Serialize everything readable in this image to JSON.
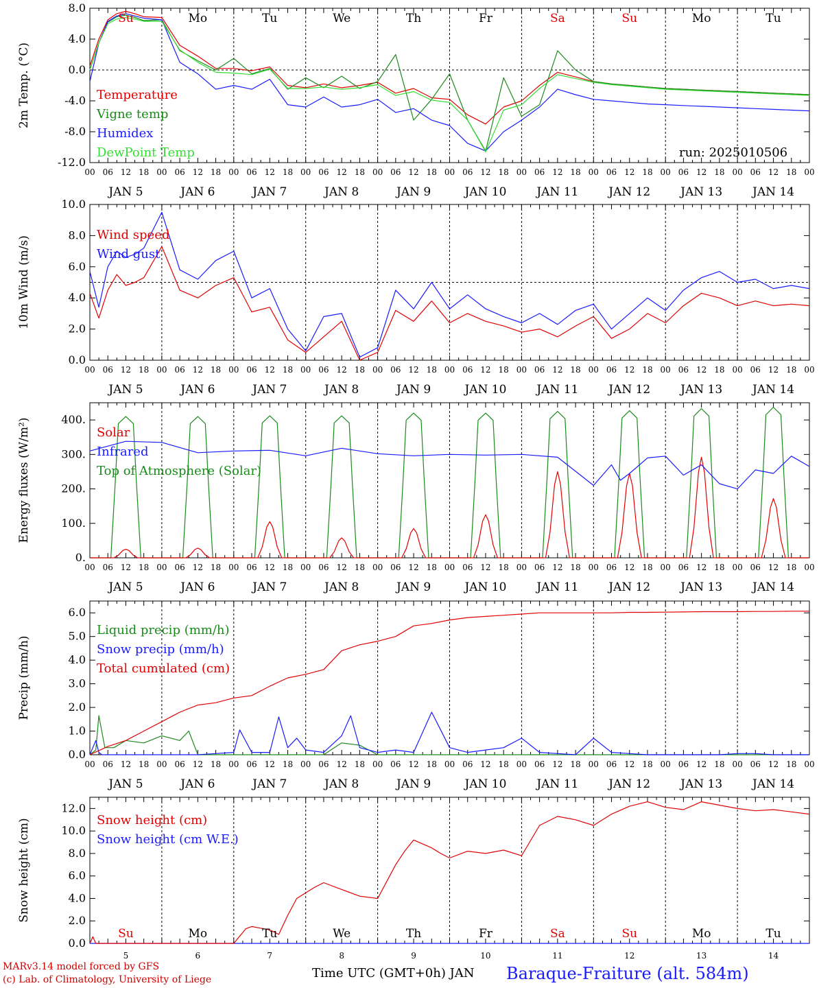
{
  "x_axis": {
    "hour_ticks": [
      "00",
      "06",
      "12",
      "18"
    ],
    "date_labels": [
      "JAN  5",
      "JAN  6",
      "JAN  7",
      "JAN  8",
      "JAN  9",
      "JAN 10",
      "JAN 11",
      "JAN 12",
      "JAN 13",
      "JAN 14"
    ],
    "weekdays": [
      "Su",
      "Mo",
      "Tu",
      "We",
      "Th",
      "Fr",
      "Sa",
      "Su",
      "Mo",
      "Tu"
    ],
    "weekday_colors": [
      "#e00000",
      "#000000",
      "#000000",
      "#000000",
      "#000000",
      "#000000",
      "#e00000",
      "#e00000",
      "#000000",
      "#000000"
    ],
    "day_numbers": [
      "5",
      "6",
      "7",
      "8",
      "9",
      "10",
      "11",
      "12",
      "13",
      "14"
    ]
  },
  "footer": {
    "model_line": "MARv3.14 model forced by GFS",
    "lab_line": "(c) Lab. of Climatology, University of Liege",
    "time_label": "Time UTC (GMT+0h) JAN",
    "station": "Baraque-Fraiture (alt. 584m)"
  },
  "colors": {
    "red": "#e00000",
    "green": "#1a8a1a",
    "blue": "#1a1aff",
    "light_green": "#33dd33"
  },
  "chart_data": [
    {
      "id": "temperature",
      "type": "line",
      "ylabel": "2m Temp. (°C)",
      "ylim": [
        -12,
        8
      ],
      "yticks": [
        "8.0",
        "4.0",
        "0.0",
        "-4.0",
        "-8.0",
        "-12.0"
      ],
      "ytick_values": [
        8,
        4,
        0,
        -4,
        -8,
        -12
      ],
      "reference_line": 0,
      "run_label": "run: 2025010506",
      "legend": [
        "Temperature",
        "Vigne temp",
        "Humidex",
        "DewPoint Temp"
      ],
      "x_hours": [
        0,
        3,
        6,
        9,
        12,
        15,
        18,
        24,
        30,
        36,
        42,
        48,
        54,
        60,
        66,
        72,
        78,
        84,
        90,
        96,
        102,
        108,
        114,
        120,
        126,
        132,
        138,
        144,
        150,
        156,
        162,
        168,
        174,
        180,
        186,
        192,
        198,
        204,
        210,
        216,
        222,
        228,
        234,
        240
      ],
      "series": [
        {
          "name": "Temperature",
          "color": "red",
          "values": [
            0.5,
            4,
            6.5,
            7.3,
            7.6,
            7.3,
            6.9,
            6.8,
            3.2,
            1.8,
            0.2,
            0.2,
            -0.1,
            0.4,
            -2.0,
            -2.3,
            -1.8,
            -2.3,
            -2.0,
            -1.6,
            -3.0,
            -2.4,
            -3.6,
            -3.8,
            -5.8,
            -7.0,
            -4.8,
            -4.0,
            -2.0,
            -0.3,
            -0.9,
            -1.5,
            -1.8,
            -2.0,
            -2.2,
            -2.4,
            -2.5,
            -2.6,
            -2.7,
            -2.8,
            -2.9,
            -3.0,
            -3.1,
            -3.2
          ]
        },
        {
          "name": "Vigne temp",
          "color": "green",
          "values": [
            0,
            3.5,
            6.2,
            6.9,
            7.1,
            6.8,
            6.4,
            6.5,
            2.5,
            1.2,
            0.0,
            1.5,
            -0.5,
            0.2,
            -2.5,
            -1.0,
            -2.3,
            -0.8,
            -2.4,
            -1.5,
            2.0,
            -6.5,
            -3.8,
            -0.5,
            -6.5,
            -10.5,
            -1.0,
            -6.0,
            -4.5,
            2.5,
            0.0,
            -1.5,
            -1.8,
            -2.0,
            -2.2,
            -2.4,
            -2.5,
            -2.6,
            -2.7,
            -2.8,
            -2.9,
            -3.0,
            -3.1,
            -3.2
          ]
        },
        {
          "name": "Humidex",
          "color": "blue",
          "values": [
            -1.5,
            3.5,
            6.3,
            7.0,
            7.3,
            7.0,
            6.7,
            6.5,
            1.0,
            -0.5,
            -2.5,
            -2.0,
            -2.5,
            -1.2,
            -4.5,
            -4.8,
            -3.5,
            -4.8,
            -4.5,
            -3.8,
            -5.5,
            -5.0,
            -6.5,
            -7.2,
            -9.5,
            -10.5,
            -8.0,
            -6.5,
            -4.8,
            -2.5,
            -3.2,
            -3.8,
            -4.0,
            -4.2,
            -4.4,
            -4.5,
            -4.6,
            -4.7,
            -4.8,
            -4.9,
            -5.0,
            -5.1,
            -5.2,
            -5.3
          ]
        },
        {
          "name": "DewPoint Temp",
          "color": "light_green",
          "values": [
            0,
            3.5,
            6.0,
            6.6,
            6.8,
            6.6,
            6.3,
            6.3,
            2.6,
            1.0,
            -0.3,
            -0.4,
            -0.6,
            0.1,
            -2.4,
            -2.4,
            -2.2,
            -2.5,
            -2.3,
            -1.9,
            -3.3,
            -2.8,
            -3.9,
            -4.2,
            -6.5,
            -10.6,
            -5.2,
            -4.5,
            -2.4,
            -0.6,
            -1.1,
            -1.6,
            -1.9,
            -2.1,
            -2.3,
            -2.5,
            -2.6,
            -2.7,
            -2.8,
            -2.9,
            -3.0,
            -3.1,
            -3.2,
            -3.3
          ]
        }
      ]
    },
    {
      "id": "wind",
      "type": "line",
      "ylabel": "10m Wind (m/s)",
      "ylim": [
        0,
        10
      ],
      "yticks": [
        "10.0",
        "8.0",
        "6.0",
        "4.0",
        "2.0",
        "0.0"
      ],
      "ytick_values": [
        10,
        8,
        6,
        4,
        2,
        0
      ],
      "reference_line": 5,
      "legend": [
        "Wind speed",
        "Wind gust"
      ],
      "x_hours": [
        0,
        3,
        6,
        9,
        12,
        15,
        18,
        24,
        30,
        36,
        42,
        48,
        54,
        60,
        66,
        72,
        78,
        84,
        90,
        96,
        102,
        108,
        114,
        120,
        126,
        132,
        138,
        144,
        150,
        156,
        162,
        168,
        174,
        180,
        186,
        192,
        198,
        204,
        210,
        216,
        222,
        228,
        234,
        240
      ],
      "series": [
        {
          "name": "Wind speed",
          "color": "red",
          "values": [
            4.3,
            2.7,
            4.5,
            5.5,
            4.8,
            5.0,
            5.3,
            7.3,
            4.5,
            4.0,
            4.8,
            5.3,
            3.1,
            3.4,
            1.3,
            0.5,
            1.5,
            2.5,
            0.0,
            0.5,
            3.2,
            2.5,
            3.8,
            2.4,
            3.0,
            2.5,
            2.2,
            1.8,
            2.0,
            1.5,
            2.2,
            2.8,
            1.4,
            2.0,
            3.0,
            2.4,
            3.5,
            4.3,
            4.0,
            3.5,
            3.8,
            3.5,
            3.6,
            3.5
          ]
        },
        {
          "name": "Wind gust",
          "color": "blue",
          "values": [
            5.7,
            3.4,
            6.0,
            7.0,
            6.6,
            6.8,
            7.2,
            9.5,
            5.8,
            5.2,
            6.4,
            7.0,
            4.0,
            4.6,
            2.0,
            0.6,
            2.8,
            3.0,
            0.2,
            0.8,
            4.5,
            3.3,
            5.0,
            3.3,
            4.2,
            3.3,
            2.8,
            2.4,
            3.0,
            2.3,
            3.2,
            3.6,
            2.0,
            3.0,
            4.0,
            3.2,
            4.5,
            5.3,
            5.7,
            5.0,
            5.2,
            4.6,
            4.8,
            4.6
          ]
        }
      ]
    },
    {
      "id": "energy",
      "type": "line",
      "ylabel": "Energy fluxes (W/m²)",
      "ylim": [
        0,
        450
      ],
      "yticks": [
        "400.",
        "300.",
        "200.",
        "100.",
        "0."
      ],
      "ytick_values": [
        400,
        300,
        200,
        100,
        0
      ],
      "legend": [
        "Solar",
        "Infrared",
        "Top of Atmosphere (Solar)"
      ],
      "daily_peaks": {
        "solar": [
          25,
          28,
          105,
          58,
          85,
          125,
          250,
          245,
          292,
          172
        ],
        "toa": [
          410,
          410,
          412,
          412,
          420,
          420,
          425,
          427,
          433,
          437
        ]
      },
      "infrared": {
        "x_hours": [
          0,
          12,
          24,
          36,
          48,
          60,
          72,
          84,
          96,
          108,
          120,
          132,
          144,
          156,
          168,
          174,
          177,
          180,
          186,
          192,
          198,
          204,
          210,
          216,
          222,
          228,
          234,
          240
        ],
        "values": [
          310,
          338,
          335,
          305,
          310,
          312,
          296,
          318,
          302,
          296,
          300,
          298,
          300,
          292,
          210,
          270,
          225,
          245,
          290,
          295,
          240,
          270,
          215,
          200,
          255,
          245,
          295,
          265
        ]
      }
    },
    {
      "id": "precip",
      "type": "line",
      "ylabel": "Precip (mm/h)",
      "ylim": [
        0,
        6.5
      ],
      "yticks": [
        "6.0",
        "5.0",
        "4.0",
        "3.0",
        "2.0",
        "1.0",
        "0.0"
      ],
      "ytick_values": [
        6,
        5,
        4,
        3,
        2,
        1,
        0
      ],
      "legend": [
        "Liquid precip (mm/h)",
        "Snow precip (mm/h)",
        "Total cumulated (cm)"
      ],
      "series": [
        {
          "name": "Total cumulated (cm)",
          "color": "red",
          "x_hours": [
            0,
            6,
            12,
            18,
            24,
            30,
            36,
            42,
            48,
            54,
            60,
            66,
            72,
            78,
            84,
            90,
            96,
            102,
            108,
            114,
            120,
            126,
            132,
            138,
            144,
            150,
            156,
            162,
            168,
            174,
            180,
            186,
            192,
            198,
            204,
            210,
            216,
            222,
            228,
            234,
            240
          ],
          "values": [
            0,
            0.35,
            0.6,
            1.0,
            1.4,
            1.8,
            2.1,
            2.2,
            2.4,
            2.5,
            2.9,
            3.25,
            3.4,
            3.6,
            4.4,
            4.65,
            4.8,
            5.0,
            5.45,
            5.55,
            5.7,
            5.8,
            5.85,
            5.9,
            5.95,
            6.0,
            6.0,
            6.0,
            6.0,
            6.0,
            6.02,
            6.02,
            6.03,
            6.04,
            6.05,
            6.05,
            6.05,
            6.06,
            6.06,
            6.07,
            6.07
          ]
        },
        {
          "name": "Liquid precip (mm/h)",
          "color": "green",
          "x_hours": [
            0,
            2,
            3,
            5,
            8,
            12,
            18,
            24,
            30,
            33,
            36,
            42,
            48,
            54,
            60,
            66,
            72,
            78,
            84,
            90,
            96,
            102,
            108,
            114,
            120,
            126,
            132,
            138,
            144,
            150,
            156,
            162,
            168,
            174,
            180,
            186,
            192,
            198,
            204,
            210,
            216,
            222,
            228,
            234,
            240
          ],
          "values": [
            0,
            0.2,
            1.65,
            0.3,
            0.3,
            0.6,
            0.5,
            0.8,
            0.6,
            1.0,
            0.0,
            0,
            0,
            0,
            0,
            0,
            0,
            0,
            0.5,
            0.4,
            0.0,
            0,
            0,
            0,
            0,
            0,
            0,
            0,
            0,
            0,
            0,
            0,
            0,
            0,
            0,
            0,
            0,
            0,
            0,
            0,
            0,
            0,
            0,
            0,
            0
          ]
        },
        {
          "name": "Snow precip (mm/h)",
          "color": "blue",
          "x_hours": [
            0,
            2,
            3,
            4,
            6,
            12,
            18,
            24,
            30,
            36,
            42,
            48,
            50,
            54,
            60,
            63,
            66,
            69,
            72,
            78,
            84,
            87,
            90,
            96,
            102,
            108,
            114,
            120,
            126,
            132,
            138,
            144,
            150,
            156,
            162,
            168,
            174,
            180,
            186,
            192,
            198,
            204,
            210,
            216,
            222,
            228,
            234,
            240
          ],
          "values": [
            0,
            0.6,
            0.1,
            0,
            0,
            0,
            0,
            0,
            0,
            0,
            0.05,
            0.1,
            1.05,
            0.1,
            0.1,
            1.6,
            0.3,
            0.7,
            0.2,
            0.1,
            0.8,
            1.65,
            0.3,
            0.1,
            0.2,
            0.1,
            1.8,
            0.3,
            0.1,
            0.2,
            0.3,
            0.7,
            0.1,
            0.05,
            0.0,
            0.7,
            0.1,
            0.05,
            0,
            0,
            0,
            0,
            0,
            0.05,
            0.05,
            0,
            0,
            0
          ]
        }
      ]
    },
    {
      "id": "snow",
      "type": "line",
      "ylabel": "Snow height (cm)",
      "ylim": [
        0,
        13
      ],
      "yticks": [
        "12.0",
        "10.0",
        "8.0",
        "6.0",
        "4.0",
        "2.0",
        "0.0"
      ],
      "ytick_values": [
        12,
        10,
        8,
        6,
        4,
        2,
        0
      ],
      "legend": [
        "Snow height (cm)",
        "Snow height (cm W.E.)"
      ],
      "series": [
        {
          "name": "Snow height (cm)",
          "color": "red",
          "x_hours": [
            0,
            1,
            2,
            3,
            6,
            12,
            18,
            24,
            30,
            36,
            42,
            48,
            52,
            54,
            60,
            63,
            66,
            69,
            72,
            75,
            78,
            84,
            87,
            90,
            96,
            100,
            102,
            105,
            108,
            114,
            117,
            120,
            126,
            132,
            138,
            144,
            150,
            156,
            162,
            168,
            174,
            180,
            186,
            192,
            198,
            204,
            210,
            216,
            222,
            228,
            234,
            240
          ],
          "values": [
            0,
            0.6,
            0,
            0,
            0,
            0,
            0,
            0,
            0,
            0,
            0,
            0,
            1.3,
            1.5,
            1.2,
            0.8,
            2.5,
            4.0,
            4.5,
            5.0,
            5.4,
            4.8,
            4.5,
            4.2,
            4.0,
            6.0,
            7.0,
            8.2,
            9.2,
            8.5,
            8.0,
            7.6,
            8.2,
            8.0,
            8.3,
            7.8,
            10.5,
            11.3,
            11.0,
            10.5,
            11.5,
            12.2,
            12.6,
            12.1,
            11.9,
            12.6,
            12.3,
            12.0,
            11.8,
            11.9,
            11.7,
            11.5
          ]
        },
        {
          "name": "Snow height (cm W.E.)",
          "color": "blue",
          "x_hours": [
            0,
            240
          ],
          "values": [
            0,
            0
          ]
        }
      ]
    }
  ]
}
